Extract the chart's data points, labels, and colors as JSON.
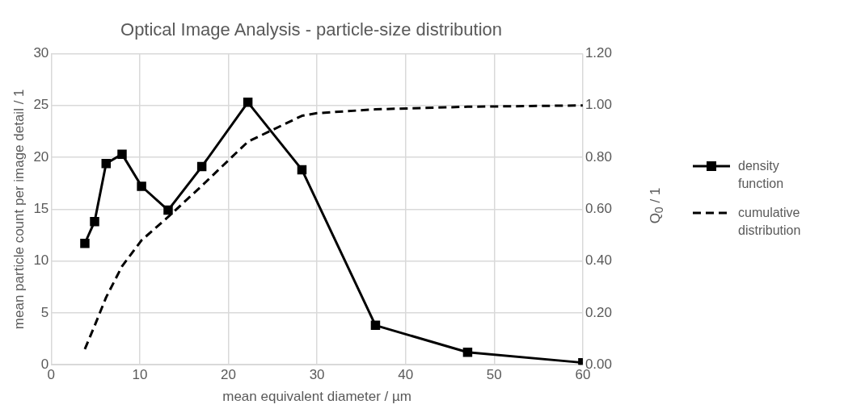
{
  "chart_data": {
    "type": "line",
    "title": "Optical Image Analysis - particle-size distribution",
    "xlabel": "mean equivalent diameter / µm",
    "ylabel": "mean particle count per image detail / 1",
    "y2label": "Q$_{0}$ / 1",
    "xlim": [
      0,
      60
    ],
    "xticks": [
      0,
      10,
      20,
      30,
      40,
      50,
      60
    ],
    "ylim": [
      0,
      30
    ],
    "yticks": [
      0,
      5,
      10,
      15,
      20,
      25,
      30
    ],
    "y2lim": [
      0,
      1.2
    ],
    "y2ticks": [
      {
        "value": 0,
        "label": "0.00"
      },
      {
        "value": 0.2,
        "label": "0.20"
      },
      {
        "value": 0.4,
        "label": "0.40"
      },
      {
        "value": 0.6,
        "label": "0.60"
      },
      {
        "value": 0.8,
        "label": "0.80"
      },
      {
        "value": 1.0,
        "label": "1.00"
      },
      {
        "value": 1.2,
        "label": "1.20"
      }
    ],
    "grid": true,
    "legend": "right",
    "series": [
      {
        "name": "density function",
        "color": "#000000",
        "marker": "square",
        "line_style": "solid",
        "x": [
          3.8,
          4.9,
          6.2,
          8.0,
          10.2,
          13.2,
          17.0,
          22.2,
          28.3,
          36.6,
          47.0,
          60
        ],
        "values": [
          11.7,
          13.8,
          19.4,
          20.3,
          17.2,
          14.9,
          19.1,
          25.3,
          18.8,
          3.8,
          1.2,
          0.2
        ]
      },
      {
        "name": "cumulative distribution",
        "color": "#000000",
        "marker": "none",
        "line_style": "dashed",
        "axis": "y2",
        "x": [
          3.8,
          4.9,
          6.2,
          8.0,
          10.2,
          13.2,
          17.0,
          22.2,
          28.3,
          30,
          36.6,
          47.0,
          60
        ],
        "values": [
          0.06,
          0.15,
          0.26,
          0.38,
          0.48,
          0.57,
          0.69,
          0.86,
          0.96,
          0.97,
          0.985,
          0.995,
          1.0
        ]
      }
    ]
  }
}
